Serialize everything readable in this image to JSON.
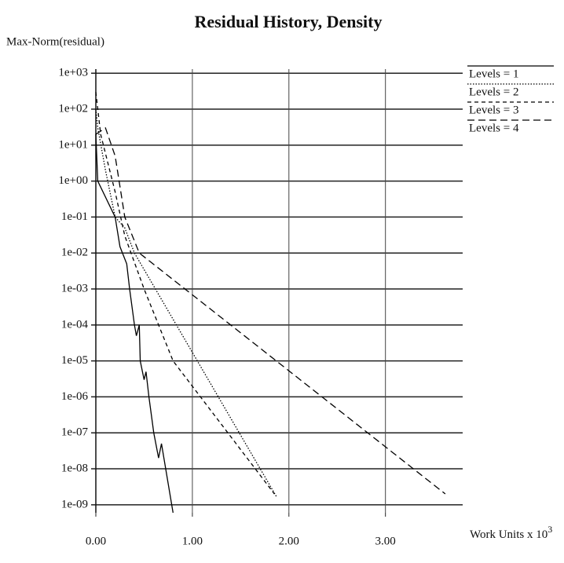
{
  "chart_data": {
    "type": "line",
    "title": "Residual History, Density",
    "ylabel": "Max-Norm(residual)",
    "xlabel": "Work Units x 10",
    "xlabel_exponent": "3",
    "log_y": true,
    "grid": true,
    "legend": "upper right",
    "xlim": [
      0,
      3.8
    ],
    "xticks": [
      {
        "value": 0,
        "label": "0.00"
      },
      {
        "value": 1,
        "label": "1.00"
      },
      {
        "value": 2,
        "label": "2.00"
      },
      {
        "value": 3,
        "label": "3.00"
      }
    ],
    "ylim": [
      6e-10,
      1300
    ],
    "yticks": [
      {
        "value": 1000,
        "label": "1e+03"
      },
      {
        "value": 100,
        "label": "1e+02"
      },
      {
        "value": 10,
        "label": "1e+01"
      },
      {
        "value": 1,
        "label": "1e+00"
      },
      {
        "value": 0.1,
        "label": "1e-01"
      },
      {
        "value": 0.01,
        "label": "1e-02"
      },
      {
        "value": 0.001,
        "label": "1e-03"
      },
      {
        "value": 0.0001,
        "label": "1e-04"
      },
      {
        "value": 1e-05,
        "label": "1e-05"
      },
      {
        "value": 1e-06,
        "label": "1e-06"
      },
      {
        "value": 1e-07,
        "label": "1e-07"
      },
      {
        "value": 1e-08,
        "label": "1e-08"
      },
      {
        "value": 1e-09,
        "label": "1e-09"
      }
    ],
    "series": [
      {
        "name": "Levels = 1",
        "color": "#000000",
        "dash": "solid",
        "x": [
          0.0,
          0.02,
          0.2,
          0.25,
          0.32,
          0.35,
          0.4,
          0.42,
          0.45,
          0.46,
          0.5,
          0.52,
          0.55,
          0.6,
          0.65,
          0.68,
          0.8
        ],
        "values": [
          20,
          1,
          0.1,
          0.015,
          0.005,
          0.001,
          0.0001,
          5e-05,
          0.0001,
          1e-05,
          3e-06,
          5e-06,
          1e-06,
          1e-07,
          2e-08,
          5e-08,
          6e-10
        ]
      },
      {
        "name": "Levels = 2",
        "color": "#000000",
        "dash": "dotted",
        "x": [
          0.0,
          0.02,
          0.1,
          0.2,
          0.3,
          0.4,
          1.87
        ],
        "values": [
          100,
          30,
          2,
          0.1,
          0.05,
          0.01,
          1.7e-09
        ]
      },
      {
        "name": "Levels = 3",
        "color": "#000000",
        "dash": "dashed",
        "x": [
          0.0,
          0.05,
          0.2,
          0.3,
          0.5,
          0.8,
          1.85
        ],
        "values": [
          300,
          20,
          0.5,
          0.03,
          0.001,
          1e-05,
          2e-09
        ]
      },
      {
        "name": "Levels = 4",
        "color": "#000000",
        "dash": "longdash",
        "x": [
          0.0,
          0.1,
          0.2,
          0.3,
          0.45,
          3.62
        ],
        "values": [
          20,
          30,
          5,
          0.1,
          0.01,
          2e-09
        ]
      }
    ]
  }
}
